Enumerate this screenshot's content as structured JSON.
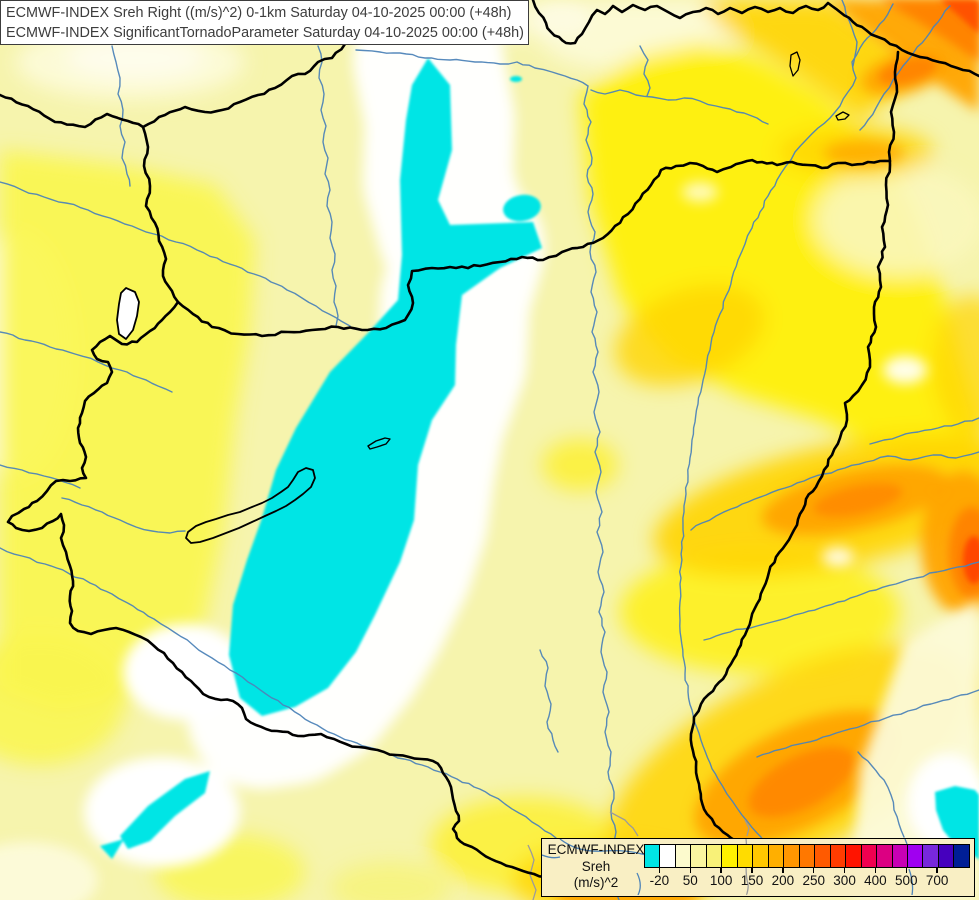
{
  "title": {
    "line1": "ECMWF-INDEX Sreh Right ((m/s)^2) 0-1km Saturday 04-10-2025 00:00 (+48h)",
    "line2": "ECMWF-INDEX SignificantTornadoParameter Saturday 04-10-2025 00:00 (+48h)"
  },
  "legend": {
    "label_line1": "ECMWF-INDEX",
    "label_line2": "Sreh",
    "label_line3": "(m/s)^2",
    "colors": [
      "#00E5E5",
      "#FFFFFF",
      "#FCFACD",
      "#FAF5A0",
      "#F8F178",
      "#FFF100",
      "#FFDC00",
      "#FFC800",
      "#FFAF00",
      "#FF9600",
      "#FF7800",
      "#FF5A00",
      "#FF3C00",
      "#FF1400",
      "#F00050",
      "#DC0082",
      "#C800B4",
      "#A000F0",
      "#7828DC",
      "#4600BE",
      "#001E96"
    ],
    "tick_labels": [
      "-20",
      "50",
      "100",
      "150",
      "200",
      "250",
      "300",
      "400",
      "500",
      "700"
    ],
    "tick_positions": [
      1,
      3,
      5,
      7,
      9,
      11,
      13,
      15,
      17,
      19
    ]
  },
  "map_colors": {
    "base": "#F6F4AD",
    "cyan": "#00E5E5",
    "river": "#4E84B8",
    "border": "#000000",
    "county": "#9B9B9B"
  }
}
